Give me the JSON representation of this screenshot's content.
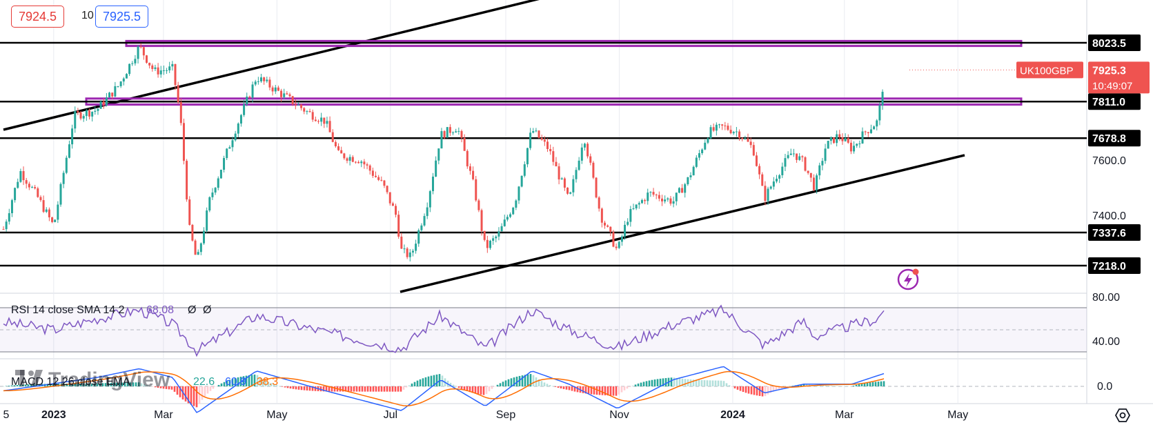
{
  "quote": {
    "bid": "7924.5",
    "spread": "10",
    "ask": "7925.5"
  },
  "colors": {
    "up": "#26a69a",
    "down": "#ef5350",
    "rsi": "#7e57c2",
    "macd": "#2962ff",
    "signal": "#ff6d00",
    "level": "#000000",
    "zone": "#9c27b0"
  },
  "price_axis": {
    "ticks": [
      "8023.5",
      "7811.0",
      "7678.8",
      "7600.0",
      "7400.0",
      "7337.6",
      "7218.0"
    ],
    "symbol": "UK100GBP",
    "last_price": "7925.3",
    "countdown": "10:49:07"
  },
  "time_axis": {
    "labels": [
      "5",
      "2023",
      "Mar",
      "May",
      "Jul",
      "Sep",
      "Nov",
      "2024",
      "Mar",
      "May"
    ]
  },
  "rsi": {
    "legend": "RSI 14 close SMA 14 2",
    "value": "68.08",
    "extra1": "Ø",
    "extra2": "Ø",
    "axis": [
      "80.00",
      "40.00"
    ]
  },
  "macd": {
    "legend": "MACD 12 26 close EMA",
    "v1": "22.6",
    "v2": "60.9",
    "v3": "38.3",
    "axis": [
      "0.0"
    ]
  },
  "watermark": "TradingView",
  "chart_data": {
    "type": "candlestick",
    "symbol": "UK100GBP",
    "y_range": [
      7180,
      8200
    ],
    "horizontal_levels": [
      8023.5,
      7811.0,
      7678.8,
      7337.6,
      7218.0
    ],
    "resistance_zones": [
      [
        8012,
        8030
      ],
      [
        7800,
        7822
      ]
    ],
    "close_path": [
      {
        "x": "2022-12-05",
        "y": 7350
      },
      {
        "x": "2022-12-14",
        "y": 7560
      },
      {
        "x": "2022-12-23",
        "y": 7470
      },
      {
        "x": "2023-01-01",
        "y": 7360
      },
      {
        "x": "2023-01-12",
        "y": 7760
      },
      {
        "x": "2023-01-24",
        "y": 7780
      },
      {
        "x": "2023-02-05",
        "y": 7870
      },
      {
        "x": "2023-02-16",
        "y": 8010
      },
      {
        "x": "2023-02-24",
        "y": 7920
      },
      {
        "x": "2023-03-06",
        "y": 7930
      },
      {
        "x": "2023-03-10",
        "y": 7760
      },
      {
        "x": "2023-03-15",
        "y": 7350
      },
      {
        "x": "2023-03-19",
        "y": 7230
      },
      {
        "x": "2023-03-26",
        "y": 7460
      },
      {
        "x": "2023-04-08",
        "y": 7700
      },
      {
        "x": "2023-04-20",
        "y": 7900
      },
      {
        "x": "2023-05-01",
        "y": 7850
      },
      {
        "x": "2023-05-18",
        "y": 7770
      },
      {
        "x": "2023-05-27",
        "y": 7740
      },
      {
        "x": "2023-06-03",
        "y": 7620
      },
      {
        "x": "2023-06-15",
        "y": 7600
      },
      {
        "x": "2023-06-27",
        "y": 7510
      },
      {
        "x": "2023-07-04",
        "y": 7400
      },
      {
        "x": "2023-07-07",
        "y": 7270
      },
      {
        "x": "2023-07-12",
        "y": 7250
      },
      {
        "x": "2023-07-21",
        "y": 7450
      },
      {
        "x": "2023-07-28",
        "y": 7690
      },
      {
        "x": "2023-08-06",
        "y": 7720
      },
      {
        "x": "2023-08-15",
        "y": 7500
      },
      {
        "x": "2023-08-21",
        "y": 7280
      },
      {
        "x": "2023-08-28",
        "y": 7330
      },
      {
        "x": "2023-09-06",
        "y": 7450
      },
      {
        "x": "2023-09-15",
        "y": 7710
      },
      {
        "x": "2023-09-24",
        "y": 7640
      },
      {
        "x": "2023-10-05",
        "y": 7450
      },
      {
        "x": "2023-10-13",
        "y": 7690
      },
      {
        "x": "2023-10-22",
        "y": 7400
      },
      {
        "x": "2023-10-31",
        "y": 7270
      },
      {
        "x": "2023-11-06",
        "y": 7400
      },
      {
        "x": "2023-11-17",
        "y": 7480
      },
      {
        "x": "2023-11-30",
        "y": 7450
      },
      {
        "x": "2023-12-08",
        "y": 7530
      },
      {
        "x": "2023-12-19",
        "y": 7700
      },
      {
        "x": "2023-12-27",
        "y": 7720
      },
      {
        "x": "2024-01-04",
        "y": 7700
      },
      {
        "x": "2024-01-12",
        "y": 7640
      },
      {
        "x": "2024-01-18",
        "y": 7460
      },
      {
        "x": "2024-01-25",
        "y": 7550
      },
      {
        "x": "2024-02-02",
        "y": 7630
      },
      {
        "x": "2024-02-08",
        "y": 7590
      },
      {
        "x": "2024-02-14",
        "y": 7500
      },
      {
        "x": "2024-02-20",
        "y": 7650
      },
      {
        "x": "2024-02-27",
        "y": 7690
      },
      {
        "x": "2024-03-05",
        "y": 7640
      },
      {
        "x": "2024-03-12",
        "y": 7700
      },
      {
        "x": "2024-03-19",
        "y": 7740
      },
      {
        "x": "2024-03-23",
        "y": 7930
      }
    ],
    "rsi_path": [
      {
        "x": "2022-12-05",
        "y": 57
      },
      {
        "x": "2023-01-01",
        "y": 50
      },
      {
        "x": "2023-01-24",
        "y": 60
      },
      {
        "x": "2023-02-16",
        "y": 68
      },
      {
        "x": "2023-03-06",
        "y": 55
      },
      {
        "x": "2023-03-19",
        "y": 31
      },
      {
        "x": "2023-04-20",
        "y": 63
      },
      {
        "x": "2023-05-27",
        "y": 48
      },
      {
        "x": "2023-07-07",
        "y": 33
      },
      {
        "x": "2023-07-28",
        "y": 63
      },
      {
        "x": "2023-08-21",
        "y": 33
      },
      {
        "x": "2023-09-15",
        "y": 68
      },
      {
        "x": "2023-10-05",
        "y": 50
      },
      {
        "x": "2023-10-31",
        "y": 34
      },
      {
        "x": "2023-11-30",
        "y": 55
      },
      {
        "x": "2023-12-27",
        "y": 68
      },
      {
        "x": "2024-01-18",
        "y": 36
      },
      {
        "x": "2024-02-08",
        "y": 58
      },
      {
        "x": "2024-02-14",
        "y": 44
      },
      {
        "x": "2024-03-05",
        "y": 54
      },
      {
        "x": "2024-03-19",
        "y": 60
      },
      {
        "x": "2024-03-23",
        "y": 70
      }
    ],
    "macd_path": [
      {
        "x": "2022-12-05",
        "y": -20
      },
      {
        "x": "2023-01-24",
        "y": 40
      },
      {
        "x": "2023-02-16",
        "y": 80
      },
      {
        "x": "2023-03-06",
        "y": 40
      },
      {
        "x": "2023-03-19",
        "y": -120
      },
      {
        "x": "2023-04-20",
        "y": 70
      },
      {
        "x": "2023-05-27",
        "y": -20
      },
      {
        "x": "2023-07-07",
        "y": -110
      },
      {
        "x": "2023-07-28",
        "y": 30
      },
      {
        "x": "2023-08-21",
        "y": -90
      },
      {
        "x": "2023-09-15",
        "y": 70
      },
      {
        "x": "2023-10-05",
        "y": 10
      },
      {
        "x": "2023-10-31",
        "y": -100
      },
      {
        "x": "2023-11-30",
        "y": 30
      },
      {
        "x": "2023-12-27",
        "y": 90
      },
      {
        "x": "2024-01-18",
        "y": -30
      },
      {
        "x": "2024-02-08",
        "y": 10
      },
      {
        "x": "2024-03-05",
        "y": 10
      },
      {
        "x": "2024-03-23",
        "y": 60
      }
    ]
  }
}
